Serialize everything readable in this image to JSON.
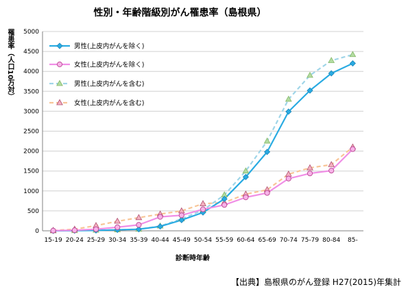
{
  "chart_data": {
    "type": "line",
    "title": "性別・年齢階級別がん罹患率（島根県）",
    "ylabel": "罹患率（人口10万対）",
    "xlabel": "診断時年齢",
    "ylim": [
      0,
      5000
    ],
    "yticks": [
      0,
      500,
      1000,
      1500,
      2000,
      2500,
      3000,
      3500,
      4000,
      4500,
      5000
    ],
    "categories": [
      "15-19",
      "20-24",
      "25-29",
      "30-34",
      "35-39",
      "40-44",
      "45-49",
      "50-54",
      "55-59",
      "60-64",
      "65-69",
      "70-74",
      "75-79",
      "80-84",
      "85-"
    ],
    "grid": "horizontal",
    "legend_position": "top-left",
    "series": [
      {
        "name": "男性(上皮内がんを除く)",
        "color": "#29abe2",
        "dashed": false,
        "marker": "diamond",
        "values": [
          0,
          5,
          10,
          25,
          40,
          110,
          270,
          460,
          800,
          1350,
          1980,
          2990,
          3520,
          3950,
          4200
        ]
      },
      {
        "name": "女性(上皮内がんを除く)",
        "color": "#f08ee6",
        "dashed": false,
        "marker": "circle",
        "values": [
          5,
          15,
          40,
          90,
          150,
          350,
          390,
          540,
          650,
          840,
          950,
          1310,
          1440,
          1510,
          2050
        ]
      },
      {
        "name": "男性(上皮内がんを含む)",
        "color": "#9fd5e8",
        "dashed": true,
        "marker": "triangle",
        "values": [
          0,
          5,
          15,
          25,
          40,
          120,
          300,
          520,
          900,
          1500,
          2250,
          3300,
          3900,
          4270,
          4420
        ]
      },
      {
        "name": "女性(上皮内がんを含む)",
        "color": "#f8c597",
        "dashed": true,
        "marker": "triangle",
        "values": [
          10,
          40,
          130,
          240,
          330,
          420,
          500,
          680,
          710,
          920,
          1030,
          1420,
          1580,
          1660,
          2100
        ]
      }
    ]
  },
  "source_text": "【出典】島根県のがん登録 H27(2015)年集計"
}
